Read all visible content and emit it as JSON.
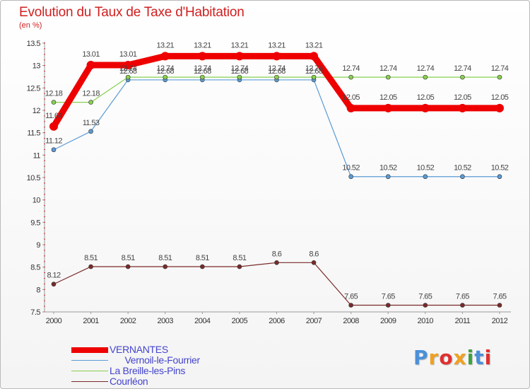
{
  "title": "Evolution du Taux de Taxe d'Habitation",
  "subtitle": "(en %)",
  "logo": {
    "text": "Proxiti",
    "letters": [
      "P",
      "r",
      "o",
      "x",
      "i",
      "t",
      "i"
    ],
    "colors": [
      "#4a90d9",
      "#f0a020",
      "#e03030",
      "#f0a020",
      "#40a040",
      "#4a90d9",
      "#e03030"
    ]
  },
  "chart_data": {
    "type": "line",
    "x": [
      "2000",
      "2001",
      "2002",
      "2003",
      "2004",
      "2005",
      "2006",
      "2007",
      "2008",
      "2009",
      "2010",
      "2011",
      "2012"
    ],
    "ylim": [
      7.5,
      13.5
    ],
    "yticks": [
      "7.5",
      "8",
      "8.5",
      "9",
      "9.5",
      "10",
      "10.5",
      "11",
      "11.5",
      "12",
      "12.5",
      "13",
      "13.5"
    ],
    "grid": false,
    "legend_position": "bottom-left",
    "series": [
      {
        "name": "VERNANTES",
        "color": "#ee0000",
        "width": 9,
        "marker": 6,
        "values": [
          11.64,
          13.01,
          13.01,
          13.21,
          13.21,
          13.21,
          13.21,
          13.21,
          12.05,
          12.05,
          12.05,
          12.05,
          12.05
        ],
        "labels": [
          "11.64",
          "13.01",
          "13.01",
          "13.21",
          "13.21",
          "13.21",
          "13.21",
          "13.21",
          "12.05",
          "12.05",
          "12.05",
          "12.05",
          "12.05"
        ]
      },
      {
        "name": "      Vernoil-le-Fourrier",
        "color": "#5b9bd5",
        "width": 1.2,
        "marker": 3,
        "values": [
          11.12,
          11.53,
          12.68,
          12.68,
          12.68,
          12.68,
          12.68,
          12.68,
          10.52,
          10.52,
          10.52,
          10.52,
          10.52
        ],
        "labels": [
          "11.12",
          "11.53",
          "12.68",
          "12.68",
          "12.68",
          "12.68",
          "12.68",
          "12.68",
          "10.52",
          "10.52",
          "10.52",
          "10.52",
          "10.52"
        ]
      },
      {
        "name": "La Breille-les-Pins",
        "color": "#88d050",
        "width": 1.2,
        "marker": 3,
        "values": [
          12.18,
          12.18,
          12.74,
          12.74,
          12.74,
          12.74,
          12.74,
          12.74,
          12.74,
          12.74,
          12.74,
          12.74,
          12.74
        ],
        "labels": [
          "12.18",
          "12.18",
          "12.74",
          "12.74",
          "12.74",
          "12.74",
          "12.74",
          "12.74",
          "12.74",
          "12.74",
          "12.74",
          "12.74",
          "12.74"
        ]
      },
      {
        "name": "Courléon",
        "color": "#7a2a2a",
        "width": 1.2,
        "marker": 3,
        "values": [
          8.12,
          8.51,
          8.51,
          8.51,
          8.51,
          8.51,
          8.6,
          8.6,
          7.65,
          7.65,
          7.65,
          7.65,
          7.65
        ],
        "labels": [
          "8.12",
          "8.51",
          "8.51",
          "8.51",
          "8.51",
          "8.51",
          "8.6",
          "8.6",
          "7.65",
          "7.65",
          "7.65",
          "7.65",
          "7.65"
        ]
      }
    ]
  }
}
